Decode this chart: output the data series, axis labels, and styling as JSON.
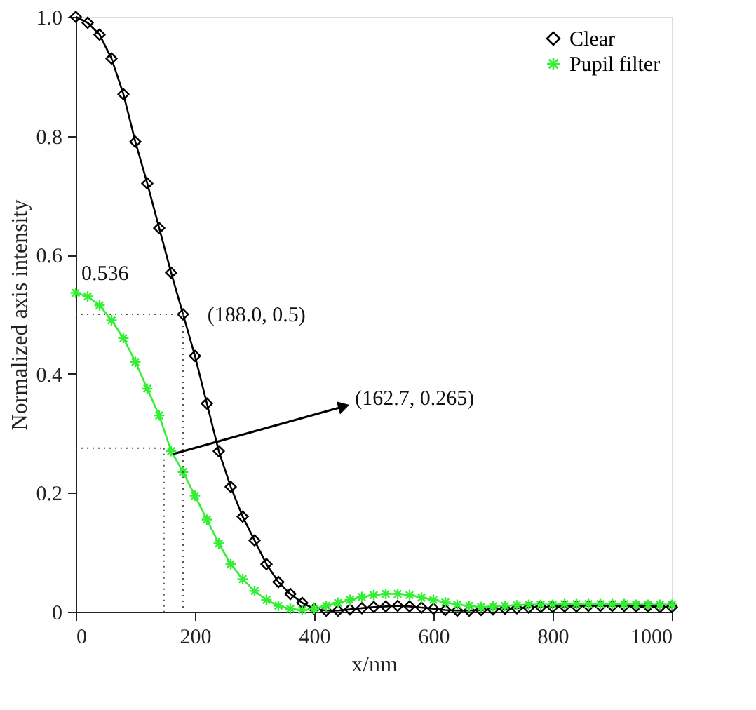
{
  "chart_data": {
    "type": "line",
    "xlabel": "x/nm",
    "ylabel": "Normalized axis intensity",
    "xlim": [
      0,
      1000
    ],
    "ylim": [
      0,
      1.0
    ],
    "xticks": [
      0,
      200,
      400,
      600,
      800,
      1000
    ],
    "yticks": [
      0,
      0.2,
      0.4,
      0.6,
      0.8,
      {
        "value": 1.0,
        "label": "1.0"
      }
    ],
    "grid": false,
    "legend": "top right",
    "series": [
      {
        "name": "Clear",
        "color": "#000000",
        "marker": "diamond",
        "x": [
          0,
          20,
          40,
          60,
          80,
          100,
          120,
          140,
          160,
          180,
          200,
          220,
          240,
          260,
          280,
          300,
          320,
          340,
          360,
          380,
          400,
          420,
          440,
          460,
          480,
          500,
          520,
          540,
          560,
          580,
          600,
          620,
          640,
          660,
          680,
          700,
          720,
          740,
          760,
          780,
          800,
          820,
          840,
          860,
          880,
          900,
          920,
          940,
          960,
          980,
          1000
        ],
        "values": [
          1.0,
          0.99,
          0.97,
          0.93,
          0.87,
          0.79,
          0.72,
          0.645,
          0.57,
          0.5,
          0.43,
          0.35,
          0.27,
          0.21,
          0.16,
          0.12,
          0.08,
          0.05,
          0.03,
          0.015,
          0.005,
          0.002,
          0.002,
          0.004,
          0.006,
          0.008,
          0.009,
          0.01,
          0.009,
          0.007,
          0.005,
          0.003,
          0.002,
          0.002,
          0.003,
          0.004,
          0.005,
          0.006,
          0.007,
          0.008,
          0.008,
          0.009,
          0.009,
          0.01,
          0.01,
          0.01,
          0.01,
          0.009,
          0.009,
          0.008,
          0.008
        ]
      },
      {
        "name": "Pupil filter",
        "color": "#33ee33",
        "marker": "cross",
        "x": [
          0,
          20,
          40,
          60,
          80,
          100,
          120,
          140,
          160,
          180,
          200,
          220,
          240,
          260,
          280,
          300,
          320,
          340,
          360,
          380,
          400,
          420,
          440,
          460,
          480,
          500,
          520,
          540,
          560,
          580,
          600,
          620,
          640,
          660,
          680,
          700,
          720,
          740,
          760,
          780,
          800,
          820,
          840,
          860,
          880,
          900,
          920,
          940,
          960,
          980,
          1000
        ],
        "values": [
          0.536,
          0.53,
          0.515,
          0.49,
          0.46,
          0.42,
          0.375,
          0.33,
          0.27,
          0.235,
          0.195,
          0.155,
          0.115,
          0.08,
          0.055,
          0.035,
          0.02,
          0.01,
          0.005,
          0.003,
          0.005,
          0.01,
          0.015,
          0.02,
          0.025,
          0.028,
          0.03,
          0.03,
          0.028,
          0.024,
          0.02,
          0.016,
          0.012,
          0.01,
          0.008,
          0.009,
          0.01,
          0.011,
          0.012,
          0.012,
          0.012,
          0.013,
          0.013,
          0.013,
          0.013,
          0.013,
          0.013,
          0.012,
          0.012,
          0.012,
          0.012
        ]
      },
      {
        "type": "line",
        "color": "#555555",
        "marker": "none",
        "line_style": "dotted",
        "x": [
          0,
          180
        ],
        "values": [
          0.5,
          0.5
        ]
      },
      {
        "type": "line",
        "color": "#555555",
        "marker": "none",
        "line_style": "dotted",
        "x": [
          180,
          180
        ],
        "values": [
          0.5,
          0
        ]
      },
      {
        "type": "line",
        "color": "#555555",
        "marker": "none",
        "line_style": "dotted",
        "x": [
          0,
          148
        ],
        "values": [
          0.275,
          0.275
        ]
      },
      {
        "type": "line",
        "color": "#555555",
        "marker": "none",
        "line_style": "dotted",
        "x": [
          148,
          148
        ],
        "values": [
          0.275,
          0
        ]
      }
    ],
    "annotations": [
      {
        "text": "0.536",
        "x": 0,
        "y": 0.536
      },
      {
        "text": "(188.0, 0.5)",
        "x": 188.0,
        "y": 0.5
      },
      {
        "text": "(162.7, 0.265)",
        "x": 162.7,
        "y": 0.265
      }
    ]
  }
}
